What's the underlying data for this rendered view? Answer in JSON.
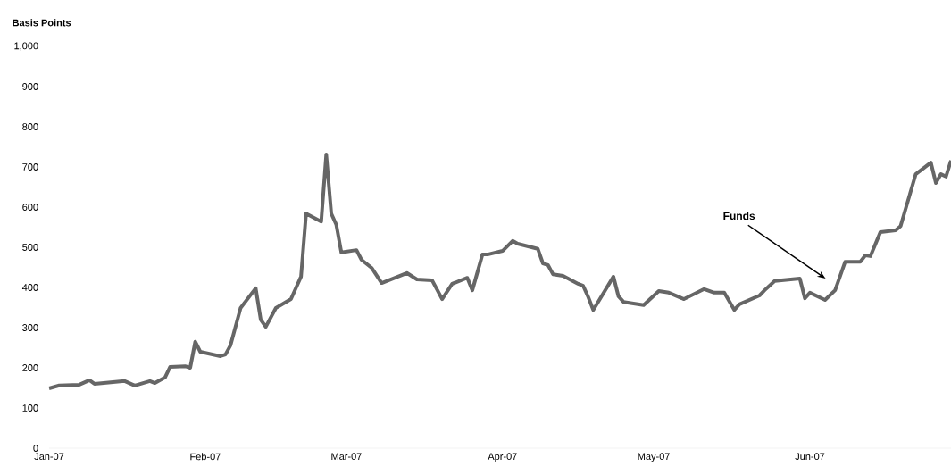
{
  "chart_data": {
    "type": "line",
    "ylabel": "Basis Points",
    "x": [
      "2007-01-01",
      "2007-01-03",
      "2007-01-07",
      "2007-01-09",
      "2007-01-10",
      "2007-01-16",
      "2007-01-18",
      "2007-01-21",
      "2007-01-22",
      "2007-01-24",
      "2007-01-25",
      "2007-01-28",
      "2007-01-29",
      "2007-01-30",
      "2007-01-31",
      "2007-02-04",
      "2007-02-05",
      "2007-02-06",
      "2007-02-08",
      "2007-02-11",
      "2007-02-12",
      "2007-02-13",
      "2007-02-15",
      "2007-02-18",
      "2007-02-20",
      "2007-02-21",
      "2007-02-24",
      "2007-02-25",
      "2007-02-26",
      "2007-02-27",
      "2007-02-28",
      "2007-03-03",
      "2007-03-04",
      "2007-03-06",
      "2007-03-08",
      "2007-03-13",
      "2007-03-15",
      "2007-03-18",
      "2007-03-20",
      "2007-03-22",
      "2007-03-25",
      "2007-03-26",
      "2007-03-28",
      "2007-03-29",
      "2007-04-01",
      "2007-04-03",
      "2007-04-04",
      "2007-04-08",
      "2007-04-09",
      "2007-04-10",
      "2007-04-11",
      "2007-04-13",
      "2007-04-16",
      "2007-04-17",
      "2007-04-18",
      "2007-04-19",
      "2007-04-23",
      "2007-04-24",
      "2007-04-25",
      "2007-04-29",
      "2007-05-02",
      "2007-05-04",
      "2007-05-07",
      "2007-05-11",
      "2007-05-13",
      "2007-05-15",
      "2007-05-17",
      "2007-05-18",
      "2007-05-22",
      "2007-05-23",
      "2007-05-25",
      "2007-05-30",
      "2007-05-31",
      "2007-06-01",
      "2007-06-04",
      "2007-06-06",
      "2007-06-08",
      "2007-06-11",
      "2007-06-12",
      "2007-06-13",
      "2007-06-15",
      "2007-06-18",
      "2007-06-19",
      "2007-06-22",
      "2007-06-25",
      "2007-06-26",
      "2007-06-27",
      "2007-06-28",
      "2007-06-29"
    ],
    "values": [
      149,
      156,
      158,
      169,
      160,
      167,
      156,
      167,
      162,
      176,
      202,
      204,
      200,
      265,
      240,
      229,
      233,
      256,
      349,
      398,
      320,
      302,
      349,
      371,
      427,
      584,
      564,
      731,
      584,
      556,
      487,
      493,
      469,
      449,
      411,
      436,
      420,
      418,
      371,
      409,
      424,
      393,
      482,
      482,
      491,
      516,
      509,
      496,
      460,
      456,
      433,
      429,
      409,
      404,
      376,
      344,
      427,
      378,
      364,
      356,
      391,
      387,
      371,
      396,
      387,
      387,
      344,
      358,
      380,
      393,
      416,
      422,
      373,
      387,
      369,
      393,
      464,
      464,
      480,
      478,
      538,
      542,
      553,
      682,
      711,
      660,
      682,
      676,
      716
    ],
    "color": "#666666",
    "xticks": [
      {
        "value": "2007-01-01",
        "label": "Jan-07"
      },
      {
        "value": "2007-02-01",
        "label": "Feb-07"
      },
      {
        "value": "2007-03-01",
        "label": "Mar-07"
      },
      {
        "value": "2007-04-01",
        "label": "Apr-07"
      },
      {
        "value": "2007-05-01",
        "label": "May-07"
      },
      {
        "value": "2007-06-01",
        "label": "Jun-07"
      }
    ],
    "ylim": [
      0,
      1000
    ],
    "xlim": [
      "2007-01-01",
      "2007-06-29"
    ],
    "yticks": [
      0,
      100,
      200,
      300,
      400,
      500,
      600,
      700,
      800,
      900,
      {
        "value": 1000,
        "label": "1,000"
      }
    ],
    "annotations": [
      "Funds"
    ]
  }
}
